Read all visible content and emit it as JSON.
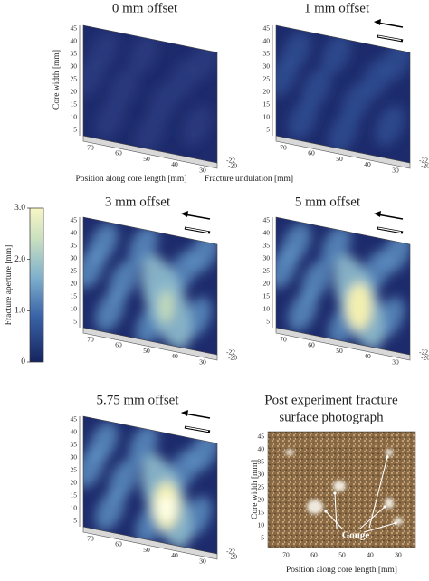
{
  "panels": [
    {
      "title": "0 mm offset"
    },
    {
      "title": "1 mm offset"
    },
    {
      "title": "3 mm offset"
    },
    {
      "title": "5 mm offset"
    },
    {
      "title": "5.75 mm offset"
    }
  ],
  "surface_axes": {
    "y_label": "Core width [mm]",
    "x_label": "Position along core length [mm]",
    "z_label": "Fracture undulation [mm]",
    "y_ticks": [
      "45",
      "40",
      "35",
      "30",
      "25",
      "20",
      "15",
      "10",
      "5"
    ],
    "x_ticks": [
      "70",
      "60",
      "50",
      "40",
      "30"
    ],
    "z_ticks": [
      "-22",
      "-20"
    ]
  },
  "colorbar": {
    "label": "Fracture aperture [mm]",
    "ticks": [
      {
        "value": 3,
        "label": "3.0"
      },
      {
        "value": 2,
        "label": "2.0"
      },
      {
        "value": 1,
        "label": "1.0"
      },
      0
    ]
  },
  "photo_panel": {
    "title": [
      "Post experiment fracture",
      "surface photograph"
    ],
    "y_label": "Core width [mm]",
    "x_label": "Position along core length [mm]",
    "annotation": "Gouge"
  }
}
